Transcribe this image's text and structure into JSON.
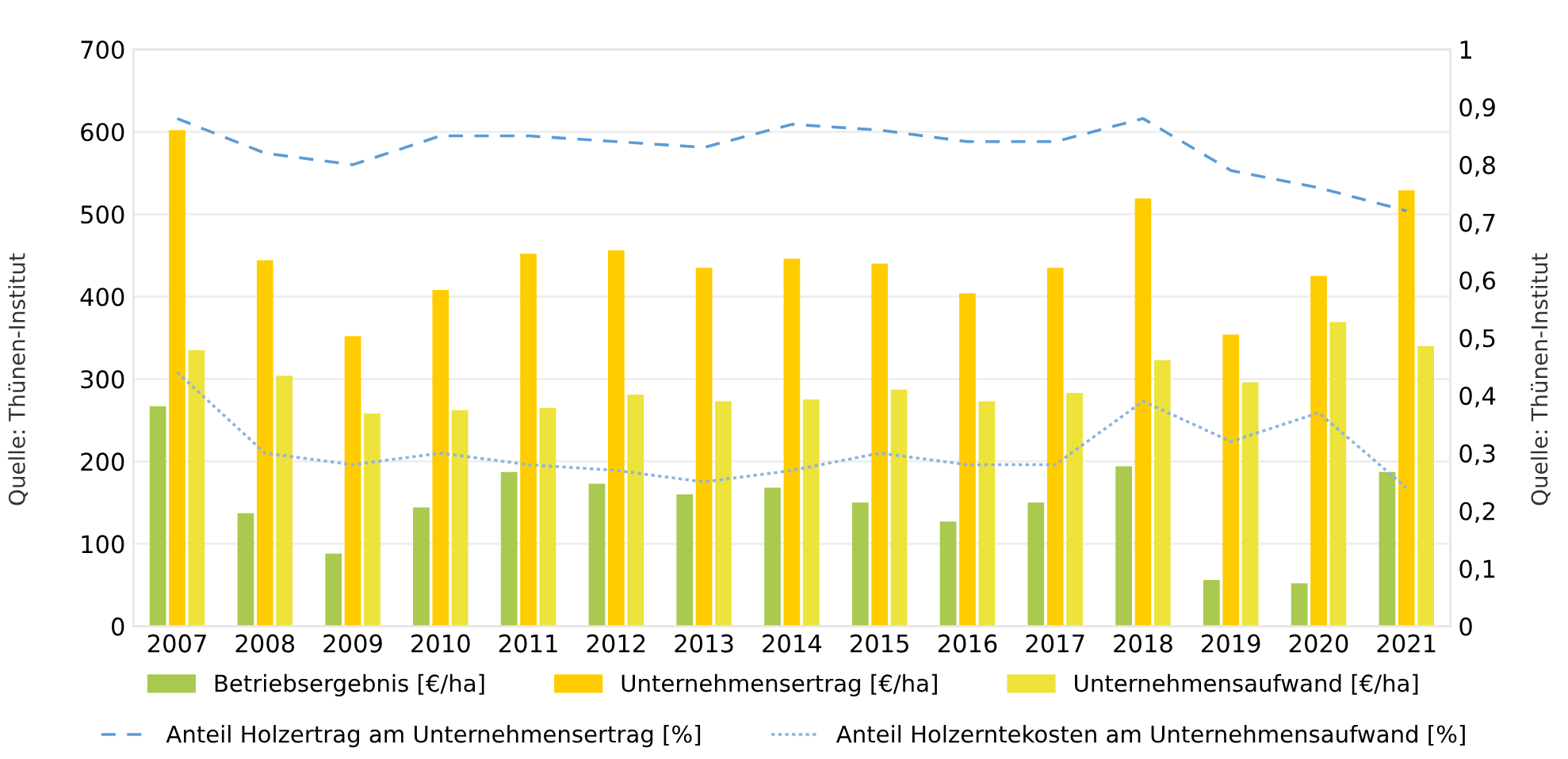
{
  "chart_data": {
    "type": "bar",
    "categories": [
      "2007",
      "2008",
      "2009",
      "2010",
      "2011",
      "2012",
      "2013",
      "2014",
      "2015",
      "2016",
      "2017",
      "2018",
      "2019",
      "2020",
      "2021"
    ],
    "series": [
      {
        "name": "Betriebsergebnis [€/ha]",
        "color": "#a9c94f",
        "values": [
          267,
          137,
          88,
          144,
          187,
          173,
          160,
          168,
          150,
          127,
          150,
          194,
          56,
          52,
          187
        ]
      },
      {
        "name": "Unternehmensertrag [€/ha]",
        "color": "#ffcc00",
        "values": [
          602,
          444,
          352,
          408,
          452,
          456,
          435,
          446,
          440,
          404,
          435,
          519,
          354,
          425,
          529
        ]
      },
      {
        "name": "Unternehmensaufwand [€/ha]",
        "color": "#ede33a",
        "values": [
          335,
          304,
          258,
          262,
          265,
          281,
          273,
          275,
          287,
          273,
          283,
          323,
          296,
          369,
          340
        ]
      },
      {
        "name": "Anteil Holzertrag am Unternehmensertrag [%]",
        "type": "line",
        "axis": "y2",
        "color": "#5b9bd5",
        "line_style": "dashed",
        "values": [
          0.88,
          0.82,
          0.8,
          0.85,
          0.85,
          0.84,
          0.83,
          0.87,
          0.86,
          0.84,
          0.84,
          0.88,
          0.79,
          0.76,
          0.72
        ]
      },
      {
        "name": "Anteil Holzerntekosten am Unternehmensaufwand [%]",
        "type": "line",
        "axis": "y2",
        "color": "#8db4e2",
        "line_style": "dotted",
        "values": [
          0.44,
          0.3,
          0.28,
          0.3,
          0.28,
          0.27,
          0.25,
          0.27,
          0.3,
          0.28,
          0.28,
          0.39,
          0.32,
          0.37,
          0.24
        ]
      }
    ],
    "ylim": [
      0,
      700
    ],
    "yticks": [
      0,
      100,
      200,
      300,
      400,
      500,
      600,
      700
    ],
    "y2lim": [
      0,
      1
    ],
    "y2ticks": [
      0,
      {
        "value": 0.1,
        "label": "0,1"
      },
      {
        "value": 0.2,
        "label": "0,2"
      },
      {
        "value": 0.3,
        "label": "0,3"
      },
      {
        "value": 0.4,
        "label": "0,4"
      },
      {
        "value": 0.5,
        "label": "0,5"
      },
      {
        "value": 0.6,
        "label": "0,6"
      },
      {
        "value": 0.7,
        "label": "0,7"
      },
      {
        "value": 0.8,
        "label": "0,8"
      },
      {
        "value": 0.9,
        "label": "0,9"
      },
      1
    ],
    "grid": "y",
    "legend": "bottom",
    "annotations": [
      "Quelle: Thünen-Institut",
      "Quelle: Thünen-Institut"
    ]
  }
}
